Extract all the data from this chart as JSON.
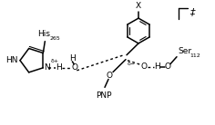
{
  "bg_color": "#ffffff",
  "fig_width": 2.36,
  "fig_height": 1.38,
  "dpi": 100,
  "his_label": "His",
  "his_sub": "265",
  "ser_label": "Ser",
  "ser_sub": "112",
  "pnp_label": "PNP",
  "x_label": "X",
  "delta_plus": "δ+",
  "delta_minus": "δ−",
  "dagger": "‡"
}
